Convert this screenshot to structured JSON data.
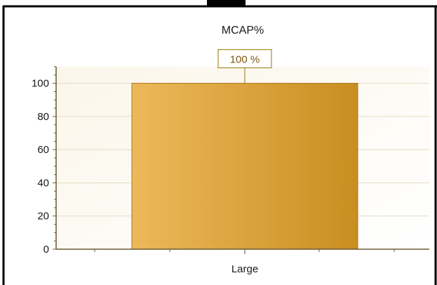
{
  "chart_data": {
    "type": "bar",
    "title": "MCAP%",
    "categories": [
      "Large"
    ],
    "values": [
      100
    ],
    "data_labels": [
      "100 %"
    ],
    "xlabel": "",
    "ylabel": "",
    "ylim": [
      0,
      110
    ],
    "yticks": [
      0,
      20,
      40,
      60,
      80,
      100
    ],
    "ytick_labels": [
      "0",
      "20",
      "40",
      "60",
      "80",
      "100"
    ],
    "grid": true,
    "legend": "none"
  },
  "colors": {
    "bar_light": "#ecb85a",
    "bar_dark": "#c98e20",
    "bar_stroke": "#a9761a",
    "plot_bg": "#fdfaf3",
    "grid": "#e6dcc3",
    "axis": "#6b5a33",
    "label_border": "#a98a2a"
  }
}
